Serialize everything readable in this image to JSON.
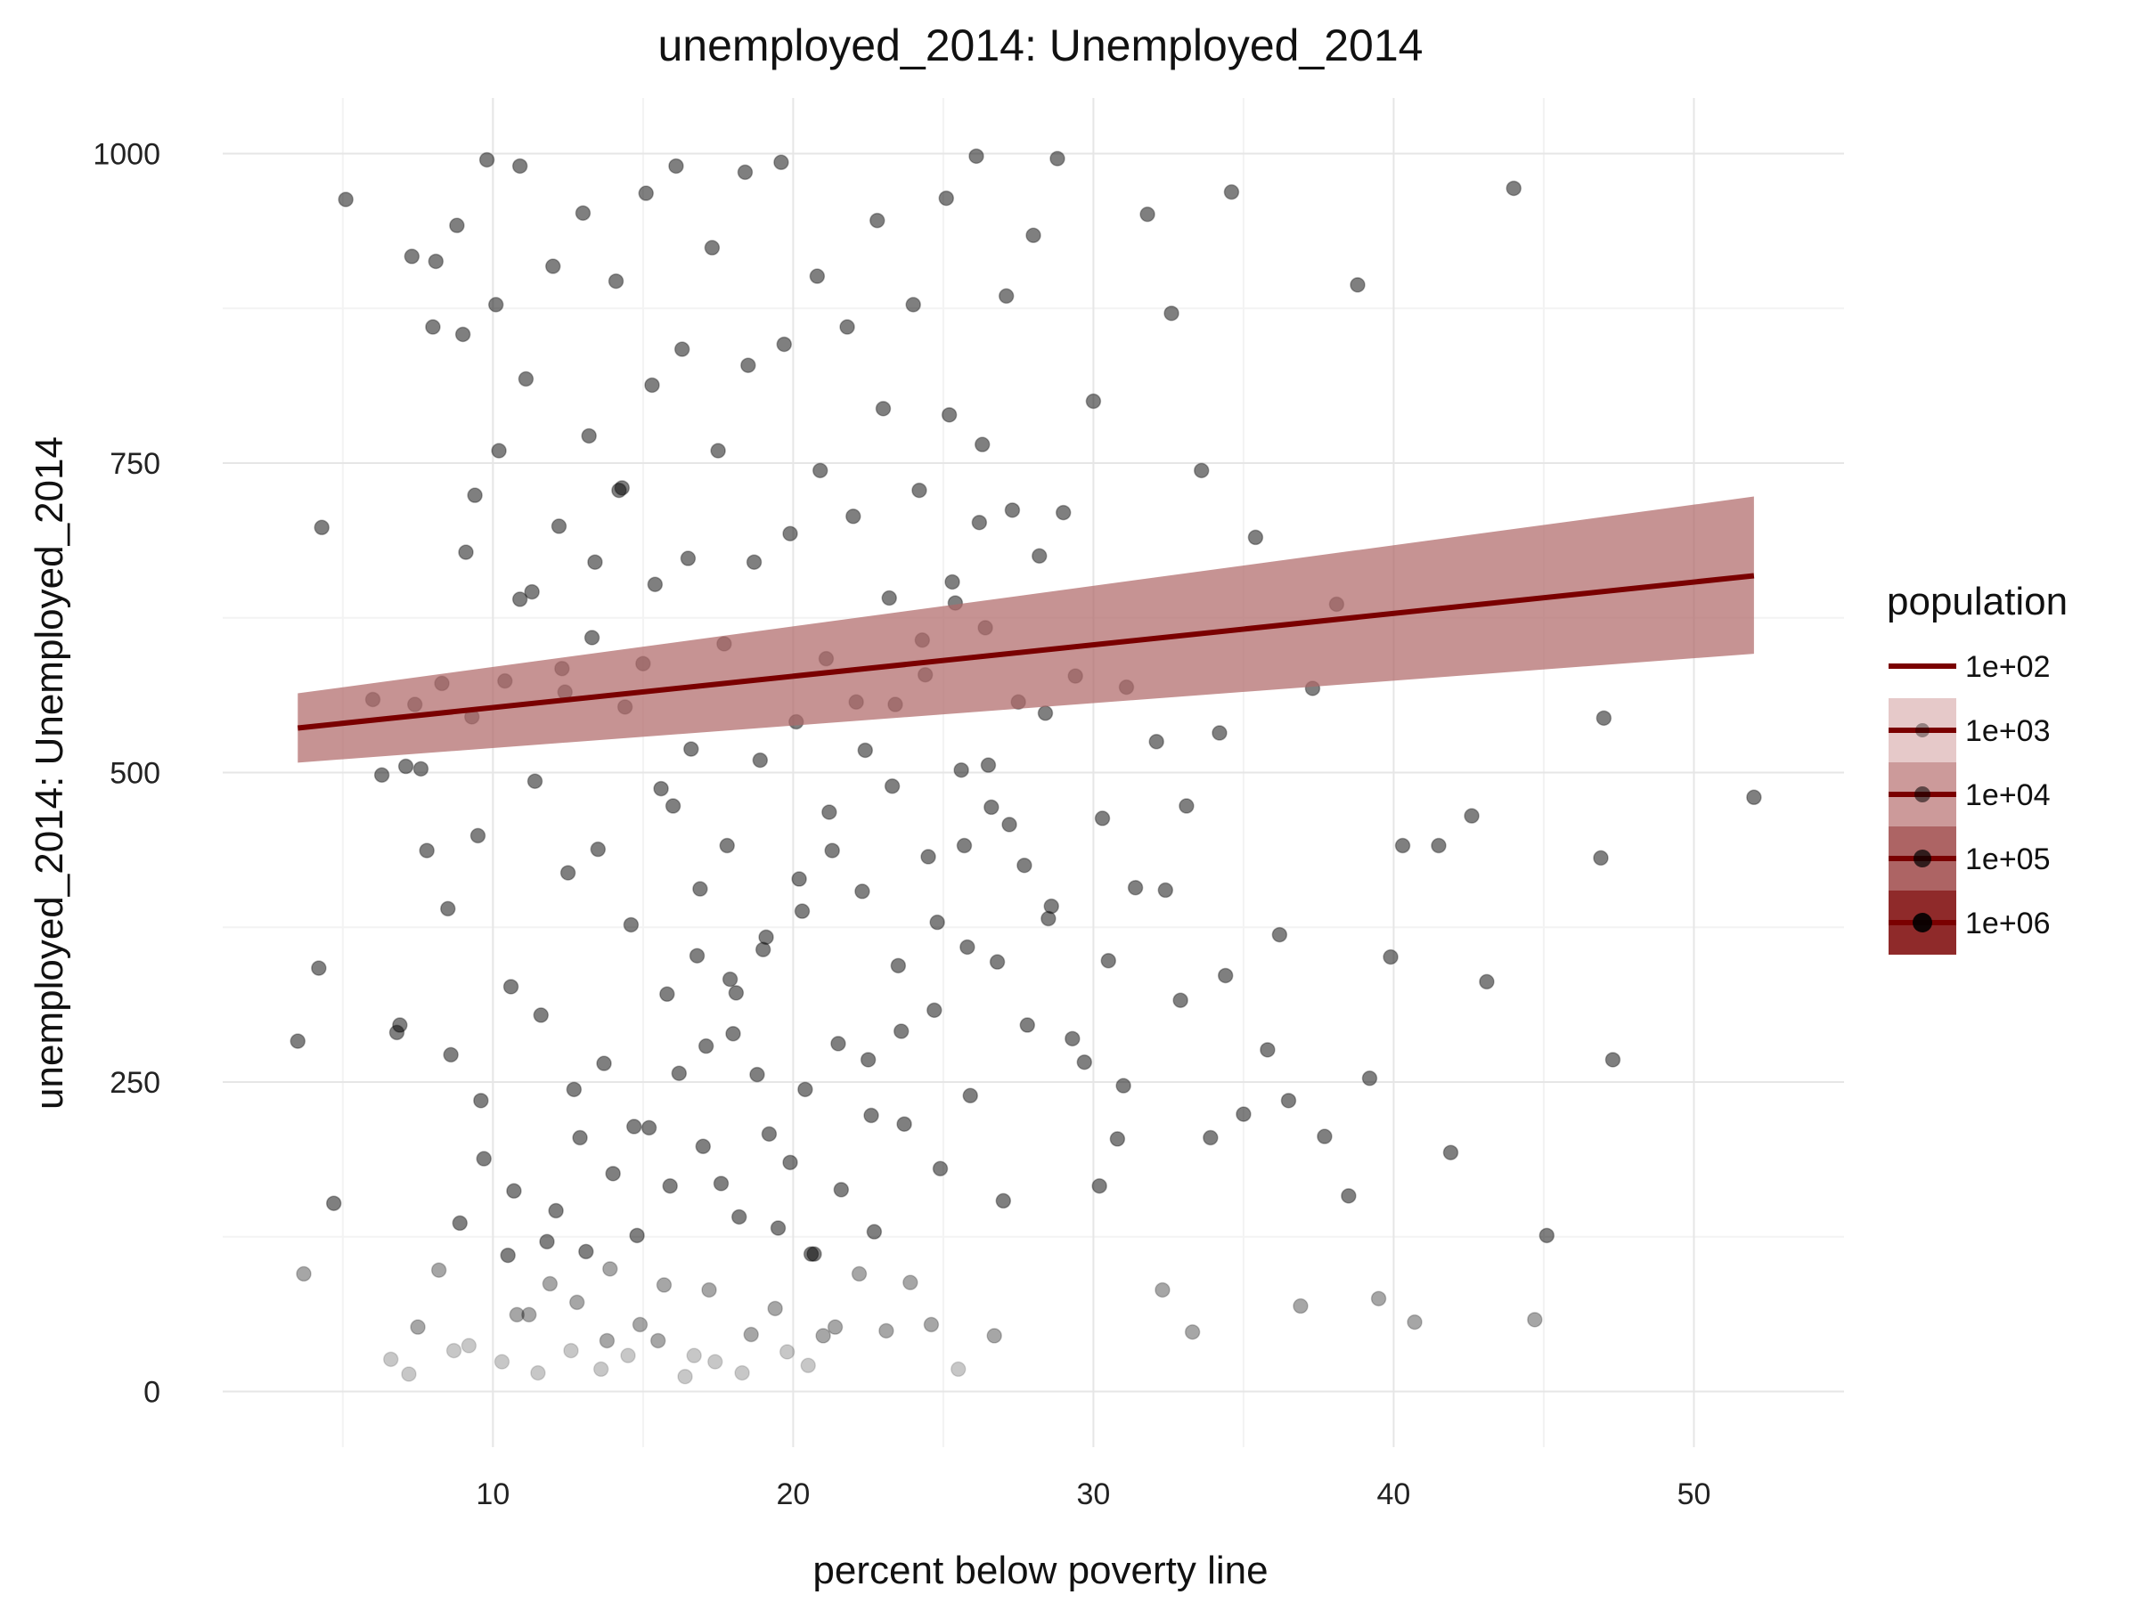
{
  "chart_data": {
    "type": "scatter",
    "title": "unemployed_2014: Unemployed_2014",
    "xlabel": "percent below poverty line",
    "ylabel": "unemployed_2014: Unemployed_2014",
    "xlim": [
      1,
      55
    ],
    "ylim": [
      -45,
      1045
    ],
    "x_ticks": [
      10,
      20,
      30,
      40,
      50
    ],
    "x_tick_labels": [
      "10",
      "20",
      "30",
      "40",
      "50"
    ],
    "y_ticks": [
      0,
      250,
      500,
      750,
      1000
    ],
    "y_tick_labels": [
      "0",
      "250",
      "500",
      "750",
      "1000"
    ],
    "grid": true,
    "legend_position": "right",
    "legend": {
      "title": "population",
      "entries": [
        "1e+02",
        "1e+03",
        "1e+04",
        "1e+05",
        "1e+06"
      ]
    },
    "colors": {
      "line": "#7a0000",
      "ribbon": "#b06a6a",
      "points": "#000000",
      "grid": "#e6e6e6",
      "legend_fills": [
        "#ffffff",
        "#e6c9c9",
        "#cc9a9a",
        "#ad6464",
        "#8f2a2a"
      ]
    },
    "trend_line": {
      "x": [
        3.5,
        52
      ],
      "y": [
        536,
        659
      ],
      "ci_lower": [
        508,
        596
      ],
      "ci_upper": [
        564,
        723
      ]
    },
    "scatter_points": [
      [
        3.5,
        283
      ],
      [
        3.7,
        95
      ],
      [
        4.2,
        342
      ],
      [
        4.3,
        698
      ],
      [
        4.7,
        152
      ],
      [
        5.1,
        963
      ],
      [
        6,
        559
      ],
      [
        6.3,
        498
      ],
      [
        6.8,
        290
      ],
      [
        6.9,
        296
      ],
      [
        7.1,
        505
      ],
      [
        7.3,
        917
      ],
      [
        7.4,
        555
      ],
      [
        7.6,
        503
      ],
      [
        7.8,
        437
      ],
      [
        8,
        860
      ],
      [
        8.1,
        913
      ],
      [
        8.3,
        572
      ],
      [
        8.5,
        390
      ],
      [
        8.6,
        272
      ],
      [
        8.8,
        942
      ],
      [
        9,
        854
      ],
      [
        9.1,
        678
      ],
      [
        9.3,
        545
      ],
      [
        9.5,
        449
      ],
      [
        9.6,
        235
      ],
      [
        9.8,
        995
      ],
      [
        10.1,
        878
      ],
      [
        10.2,
        760
      ],
      [
        10.4,
        574
      ],
      [
        10.6,
        327
      ],
      [
        10.7,
        162
      ],
      [
        10.9,
        990
      ],
      [
        11.1,
        818
      ],
      [
        11.3,
        646
      ],
      [
        11.4,
        493
      ],
      [
        11.6,
        304
      ],
      [
        11.8,
        121
      ],
      [
        12,
        909
      ],
      [
        12.2,
        699
      ],
      [
        12.3,
        584
      ],
      [
        12.5,
        419
      ],
      [
        12.7,
        244
      ],
      [
        12.8,
        72
      ],
      [
        13,
        952
      ],
      [
        13.2,
        772
      ],
      [
        13.3,
        609
      ],
      [
        13.5,
        438
      ],
      [
        13.7,
        265
      ],
      [
        13.9,
        99
      ],
      [
        14.1,
        897
      ],
      [
        14.2,
        728
      ],
      [
        14.4,
        553
      ],
      [
        14.6,
        377
      ],
      [
        14.7,
        214
      ],
      [
        14.9,
        54
      ],
      [
        15.1,
        968
      ],
      [
        15.3,
        813
      ],
      [
        15.4,
        652
      ],
      [
        15.6,
        487
      ],
      [
        15.8,
        321
      ],
      [
        15.9,
        166
      ],
      [
        16.1,
        990
      ],
      [
        16.3,
        842
      ],
      [
        16.5,
        673
      ],
      [
        16.6,
        519
      ],
      [
        16.8,
        352
      ],
      [
        17,
        198
      ],
      [
        17.2,
        82
      ],
      [
        17.3,
        924
      ],
      [
        17.5,
        760
      ],
      [
        17.7,
        604
      ],
      [
        17.8,
        441
      ],
      [
        18,
        289
      ],
      [
        18.2,
        141
      ],
      [
        18.4,
        985
      ],
      [
        18.5,
        829
      ],
      [
        18.7,
        670
      ],
      [
        18.9,
        510
      ],
      [
        19,
        357
      ],
      [
        19.2,
        208
      ],
      [
        19.4,
        67
      ],
      [
        19.6,
        993
      ],
      [
        19.7,
        846
      ],
      [
        19.9,
        693
      ],
      [
        20.1,
        541
      ],
      [
        20.3,
        388
      ],
      [
        20.4,
        244
      ],
      [
        20.6,
        111
      ],
      [
        20.8,
        901
      ],
      [
        20.9,
        744
      ],
      [
        21.1,
        592
      ],
      [
        21.3,
        437
      ],
      [
        21.5,
        281
      ],
      [
        21.6,
        163
      ],
      [
        21.8,
        860
      ],
      [
        22,
        707
      ],
      [
        22.1,
        557
      ],
      [
        22.3,
        404
      ],
      [
        22.5,
        268
      ],
      [
        22.7,
        129
      ],
      [
        22.8,
        946
      ],
      [
        23,
        794
      ],
      [
        23.2,
        641
      ],
      [
        23.3,
        489
      ],
      [
        23.5,
        344
      ],
      [
        23.7,
        216
      ],
      [
        23.9,
        88
      ],
      [
        24,
        878
      ],
      [
        24.2,
        728
      ],
      [
        24.4,
        579
      ],
      [
        24.5,
        432
      ],
      [
        24.7,
        308
      ],
      [
        24.9,
        180
      ],
      [
        25.1,
        964
      ],
      [
        25.2,
        789
      ],
      [
        25.4,
        637
      ],
      [
        25.6,
        502
      ],
      [
        25.8,
        359
      ],
      [
        25.9,
        239
      ],
      [
        26.1,
        998
      ],
      [
        26.3,
        765
      ],
      [
        26.4,
        617
      ],
      [
        26.6,
        472
      ],
      [
        26.8,
        347
      ],
      [
        27,
        154
      ],
      [
        27.1,
        885
      ],
      [
        27.3,
        712
      ],
      [
        27.5,
        557
      ],
      [
        27.7,
        425
      ],
      [
        27.8,
        296
      ],
      [
        28,
        934
      ],
      [
        28.2,
        675
      ],
      [
        28.4,
        548
      ],
      [
        28.6,
        392
      ],
      [
        28.8,
        996
      ],
      [
        29,
        710
      ],
      [
        29.4,
        578
      ],
      [
        29.7,
        266
      ],
      [
        30,
        800
      ],
      [
        30.3,
        463
      ],
      [
        30.5,
        348
      ],
      [
        30.8,
        204
      ],
      [
        31.1,
        569
      ],
      [
        31.4,
        407
      ],
      [
        31.8,
        951
      ],
      [
        32.1,
        525
      ],
      [
        32.3,
        82
      ],
      [
        32.6,
        871
      ],
      [
        32.9,
        316
      ],
      [
        33.3,
        48
      ],
      [
        33.6,
        744
      ],
      [
        33.9,
        205
      ],
      [
        34.2,
        532
      ],
      [
        34.6,
        969
      ],
      [
        35,
        224
      ],
      [
        35.4,
        690
      ],
      [
        35.8,
        276
      ],
      [
        36.2,
        369
      ],
      [
        36.5,
        235
      ],
      [
        36.9,
        69
      ],
      [
        37.3,
        568
      ],
      [
        37.7,
        206
      ],
      [
        38.1,
        636
      ],
      [
        38.5,
        158
      ],
      [
        38.8,
        894
      ],
      [
        39.2,
        253
      ],
      [
        39.5,
        75
      ],
      [
        39.9,
        351
      ],
      [
        40.3,
        441
      ],
      [
        40.7,
        56
      ],
      [
        41.5,
        441
      ],
      [
        41.9,
        193
      ],
      [
        42.6,
        465
      ],
      [
        43.1,
        331
      ],
      [
        44,
        972
      ],
      [
        44.7,
        58
      ],
      [
        45.1,
        126
      ],
      [
        46.9,
        431
      ],
      [
        47,
        544
      ],
      [
        47.3,
        268
      ],
      [
        52,
        480
      ],
      [
        8.9,
        136
      ],
      [
        9.7,
        188
      ],
      [
        10.5,
        110
      ],
      [
        11.2,
        62
      ],
      [
        12.1,
        146
      ],
      [
        12.9,
        205
      ],
      [
        13.8,
        41
      ],
      [
        14.8,
        126
      ],
      [
        15.7,
        86
      ],
      [
        16.7,
        29
      ],
      [
        17.6,
        168
      ],
      [
        18.6,
        46
      ],
      [
        19.5,
        132
      ],
      [
        20.5,
        21
      ],
      [
        21.4,
        52
      ],
      [
        22.2,
        95
      ],
      [
        23.1,
        49
      ],
      [
        24.6,
        54
      ],
      [
        25.5,
        18
      ],
      [
        26.7,
        45
      ],
      [
        8.2,
        98
      ],
      [
        9.2,
        37
      ],
      [
        10.3,
        24
      ],
      [
        11.5,
        15
      ],
      [
        12.6,
        33
      ],
      [
        13.6,
        18
      ],
      [
        14.5,
        29
      ],
      [
        15.5,
        41
      ],
      [
        16.4,
        12
      ],
      [
        17.4,
        24
      ],
      [
        18.3,
        15
      ],
      [
        19.8,
        32
      ],
      [
        21,
        45
      ],
      [
        7.5,
        52
      ],
      [
        6.6,
        26
      ],
      [
        7.2,
        14
      ],
      [
        8.7,
        33
      ],
      [
        10.8,
        62
      ],
      [
        11.9,
        87
      ],
      [
        13.1,
        113
      ],
      [
        14,
        176
      ],
      [
        15.2,
        213
      ],
      [
        16.2,
        257
      ],
      [
        17.1,
        279
      ],
      [
        18.1,
        322
      ],
      [
        19.1,
        367
      ],
      [
        20.2,
        414
      ],
      [
        21.2,
        468
      ],
      [
        22.4,
        518
      ],
      [
        23.4,
        555
      ],
      [
        24.3,
        607
      ],
      [
        25.3,
        654
      ],
      [
        26.2,
        702
      ],
      [
        9.4,
        724
      ],
      [
        10.9,
        640
      ],
      [
        12.4,
        565
      ],
      [
        13.4,
        670
      ],
      [
        14.3,
        730
      ],
      [
        15,
        588
      ],
      [
        16,
        473
      ],
      [
        16.9,
        406
      ],
      [
        17.9,
        333
      ],
      [
        18.8,
        256
      ],
      [
        19.9,
        185
      ],
      [
        20.7,
        111
      ],
      [
        22.6,
        223
      ],
      [
        23.6,
        291
      ],
      [
        24.8,
        379
      ],
      [
        25.7,
        441
      ],
      [
        26.5,
        506
      ],
      [
        27.2,
        458
      ],
      [
        28.5,
        382
      ],
      [
        29.3,
        285
      ],
      [
        30.2,
        166
      ],
      [
        31,
        247
      ],
      [
        32.4,
        405
      ],
      [
        33.1,
        473
      ],
      [
        34.4,
        336
      ]
    ]
  }
}
